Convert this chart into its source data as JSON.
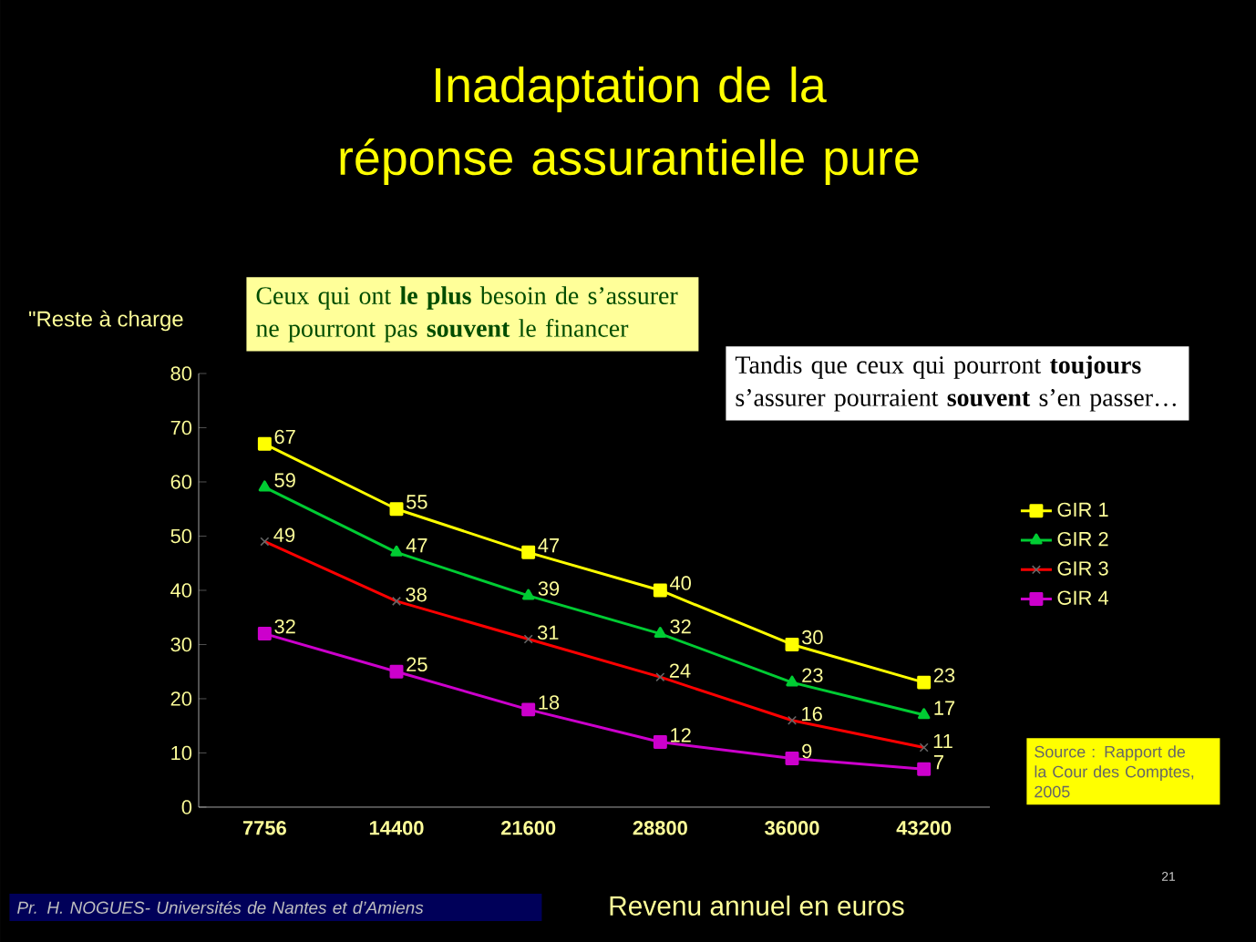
{
  "chart_data": {
    "type": "line",
    "title": "Inadaptation de la réponse assurantielle pure",
    "xlabel": "Revenu annuel en euros",
    "ylabel": "\"Reste à charge",
    "categories": [
      "7756",
      "14400",
      "21600",
      "28800",
      "36000",
      "43200"
    ],
    "series": [
      {
        "name": "GIR 1",
        "color": "#ffff00",
        "marker": "square",
        "values": [
          67,
          55,
          47,
          40,
          30,
          23
        ]
      },
      {
        "name": "GIR 2",
        "color": "#00cc33",
        "marker": "triangle",
        "values": [
          59,
          47,
          39,
          32,
          23,
          17
        ]
      },
      {
        "name": "GIR 3",
        "color": "#ff0000",
        "marker": "cross",
        "values": [
          49,
          38,
          31,
          24,
          16,
          11
        ]
      },
      {
        "name": "GIR 4",
        "color": "#cc00cc",
        "marker": "square",
        "values": [
          32,
          25,
          18,
          12,
          9,
          7
        ]
      }
    ],
    "ylim": [
      0,
      80
    ],
    "yticks": [
      0,
      10,
      20,
      30,
      40,
      50,
      60,
      70,
      80
    ],
    "legend": "right",
    "data_labels": true,
    "annotations": [
      "Ceux qui ont **le plus** besoin de s’assurer ne pourront pas **souvent** le financer",
      "Tandis que ceux qui pourront **toujours** s’assurer pourraient **souvent** s’en passer…",
      "Source : Rapport de la Cour des Comptes, 2005",
      "Pr. H. NOGUES- Universités de Nantes et d’Amiens",
      "21"
    ]
  }
}
